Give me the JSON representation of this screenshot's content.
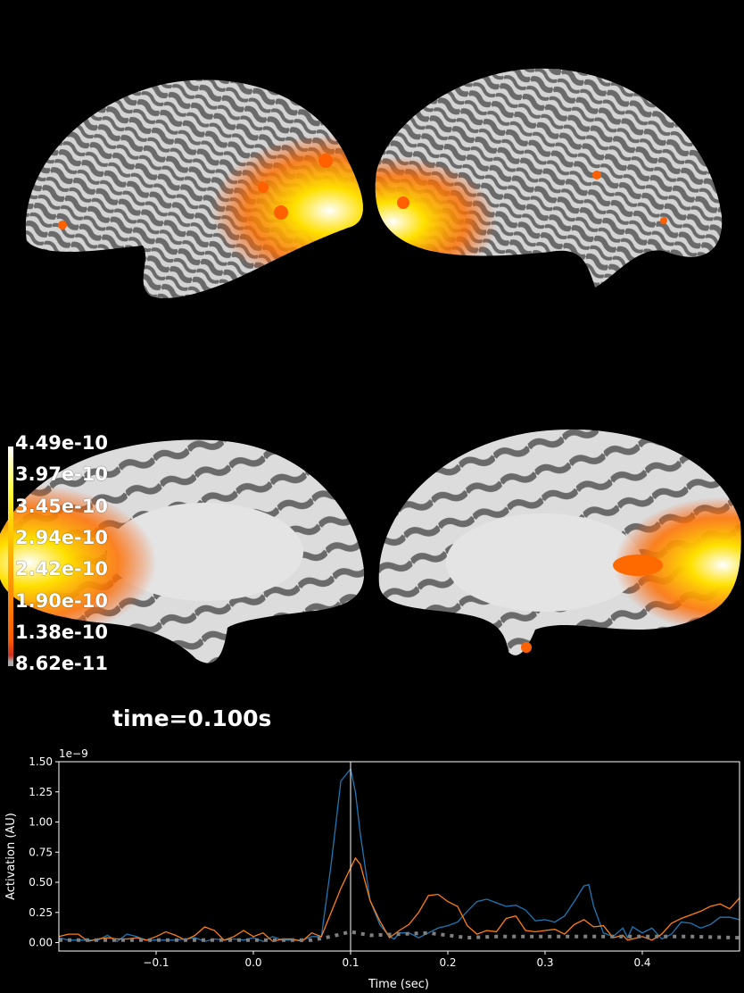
{
  "colorbar": {
    "labels": [
      "4.49e-10",
      "3.97e-10",
      "3.45e-10",
      "2.94e-10",
      "2.42e-10",
      "1.90e-10",
      "1.38e-10",
      "8.62e-11"
    ],
    "colors": [
      "#ffffff",
      "#ffff40",
      "#ffd000",
      "#ff9a00",
      "#ff5a00",
      "#d03020",
      "#aaaaaa"
    ]
  },
  "time_label": "time=0.100s",
  "colors": {
    "background": "#000000",
    "cortex_light": "#d9d9d9",
    "cortex_dark": "#6a6a6a",
    "activation": "#ff6a00"
  },
  "chart_data": {
    "type": "line",
    "xlabel": "Time (sec)",
    "ylabel": "Activation (AU)",
    "offset_text": "1e−9",
    "xlim": [
      -0.2,
      0.5
    ],
    "ylim": [
      -0.07,
      1.5
    ],
    "xticks": [
      -0.1,
      0.0,
      0.1,
      0.2,
      0.3,
      0.4
    ],
    "xtick_labels": [
      "−0.1",
      "0.0",
      "0.1",
      "0.2",
      "0.3",
      "0.4"
    ],
    "yticks": [
      0,
      0.25,
      0.5,
      0.75,
      1.0,
      1.25,
      1.5
    ],
    "ytick_labels": [
      "0.00",
      "0.25",
      "0.50",
      "0.75",
      "1.00",
      "1.25",
      "1.50"
    ],
    "grid": false,
    "vline": 0.1,
    "series": [
      {
        "color": "#1f77b4",
        "style": "solid",
        "points": [
          [
            -0.2,
            0.04
          ],
          [
            -0.19,
            0.02
          ],
          [
            -0.18,
            0.02
          ],
          [
            -0.17,
            0.02
          ],
          [
            -0.16,
            0.02
          ],
          [
            -0.15,
            0.06
          ],
          [
            -0.14,
            0.01
          ],
          [
            -0.13,
            0.07
          ],
          [
            -0.12,
            0.05
          ],
          [
            -0.11,
            0.02
          ],
          [
            -0.1,
            0.02
          ],
          [
            -0.09,
            0.02
          ],
          [
            -0.08,
            0.02
          ],
          [
            -0.07,
            0.03
          ],
          [
            -0.06,
            0.04
          ],
          [
            -0.05,
            0.01
          ],
          [
            -0.04,
            0.03
          ],
          [
            -0.03,
            0.02
          ],
          [
            -0.02,
            0.03
          ],
          [
            -0.01,
            0.02
          ],
          [
            0.0,
            0.04
          ],
          [
            0.01,
            0.01
          ],
          [
            0.02,
            0.05
          ],
          [
            0.03,
            0.02
          ],
          [
            0.04,
            0.02
          ],
          [
            0.05,
            0.02
          ],
          [
            0.06,
            0.05
          ],
          [
            0.07,
            0.05
          ],
          [
            0.08,
            0.65
          ],
          [
            0.09,
            1.34
          ],
          [
            0.1,
            1.44
          ],
          [
            0.105,
            1.25
          ],
          [
            0.11,
            0.9
          ],
          [
            0.12,
            0.35
          ],
          [
            0.13,
            0.15
          ],
          [
            0.14,
            0.05
          ],
          [
            0.145,
            0.03
          ],
          [
            0.15,
            0.08
          ],
          [
            0.16,
            0.08
          ],
          [
            0.17,
            0.04
          ],
          [
            0.18,
            0.08
          ],
          [
            0.19,
            0.12
          ],
          [
            0.2,
            0.14
          ],
          [
            0.21,
            0.17
          ],
          [
            0.22,
            0.26
          ],
          [
            0.23,
            0.34
          ],
          [
            0.24,
            0.36
          ],
          [
            0.25,
            0.33
          ],
          [
            0.26,
            0.3
          ],
          [
            0.27,
            0.31
          ],
          [
            0.28,
            0.27
          ],
          [
            0.29,
            0.18
          ],
          [
            0.3,
            0.19
          ],
          [
            0.31,
            0.17
          ],
          [
            0.32,
            0.22
          ],
          [
            0.33,
            0.34
          ],
          [
            0.34,
            0.47
          ],
          [
            0.345,
            0.48
          ],
          [
            0.35,
            0.3
          ],
          [
            0.36,
            0.08
          ],
          [
            0.37,
            0.05
          ],
          [
            0.38,
            0.12
          ],
          [
            0.385,
            0.04
          ],
          [
            0.39,
            0.13
          ],
          [
            0.4,
            0.08
          ],
          [
            0.41,
            0.12
          ],
          [
            0.42,
            0.03
          ],
          [
            0.43,
            0.07
          ],
          [
            0.44,
            0.17
          ],
          [
            0.45,
            0.16
          ],
          [
            0.46,
            0.12
          ],
          [
            0.47,
            0.15
          ],
          [
            0.48,
            0.21
          ],
          [
            0.49,
            0.21
          ],
          [
            0.5,
            0.19
          ]
        ]
      },
      {
        "color": "#ff7f0e",
        "style": "solid",
        "points": [
          [
            -0.2,
            0.05
          ],
          [
            -0.19,
            0.07
          ],
          [
            -0.18,
            0.07
          ],
          [
            -0.17,
            0.01
          ],
          [
            -0.16,
            0.03
          ],
          [
            -0.15,
            0.04
          ],
          [
            -0.14,
            0.03
          ],
          [
            -0.13,
            0.03
          ],
          [
            -0.12,
            0.04
          ],
          [
            -0.11,
            0.02
          ],
          [
            -0.1,
            0.05
          ],
          [
            -0.09,
            0.09
          ],
          [
            -0.08,
            0.06
          ],
          [
            -0.07,
            0.02
          ],
          [
            -0.06,
            0.06
          ],
          [
            -0.05,
            0.13
          ],
          [
            -0.04,
            0.1
          ],
          [
            -0.03,
            0.02
          ],
          [
            -0.02,
            0.05
          ],
          [
            -0.01,
            0.1
          ],
          [
            0.0,
            0.05
          ],
          [
            0.01,
            0.08
          ],
          [
            0.02,
            0.01
          ],
          [
            0.03,
            0.03
          ],
          [
            0.04,
            0.03
          ],
          [
            0.05,
            0.01
          ],
          [
            0.06,
            0.08
          ],
          [
            0.07,
            0.05
          ],
          [
            0.08,
            0.25
          ],
          [
            0.09,
            0.45
          ],
          [
            0.1,
            0.62
          ],
          [
            0.105,
            0.7
          ],
          [
            0.11,
            0.65
          ],
          [
            0.12,
            0.35
          ],
          [
            0.13,
            0.18
          ],
          [
            0.14,
            0.04
          ],
          [
            0.15,
            0.1
          ],
          [
            0.16,
            0.15
          ],
          [
            0.17,
            0.25
          ],
          [
            0.18,
            0.39
          ],
          [
            0.19,
            0.4
          ],
          [
            0.2,
            0.34
          ],
          [
            0.21,
            0.3
          ],
          [
            0.22,
            0.14
          ],
          [
            0.23,
            0.07
          ],
          [
            0.24,
            0.1
          ],
          [
            0.25,
            0.09
          ],
          [
            0.26,
            0.2
          ],
          [
            0.27,
            0.22
          ],
          [
            0.28,
            0.1
          ],
          [
            0.29,
            0.09
          ],
          [
            0.3,
            0.1
          ],
          [
            0.31,
            0.11
          ],
          [
            0.32,
            0.07
          ],
          [
            0.33,
            0.15
          ],
          [
            0.34,
            0.19
          ],
          [
            0.35,
            0.13
          ],
          [
            0.36,
            0.14
          ],
          [
            0.37,
            0.04
          ],
          [
            0.38,
            0.06
          ],
          [
            0.385,
            0.02
          ],
          [
            0.39,
            0.03
          ],
          [
            0.4,
            0.05
          ],
          [
            0.41,
            0.02
          ],
          [
            0.42,
            0.07
          ],
          [
            0.43,
            0.16
          ],
          [
            0.44,
            0.2
          ],
          [
            0.45,
            0.23
          ],
          [
            0.46,
            0.26
          ],
          [
            0.47,
            0.3
          ],
          [
            0.48,
            0.32
          ],
          [
            0.49,
            0.28
          ],
          [
            0.5,
            0.37
          ]
        ]
      },
      {
        "color": "#808080",
        "style": "dotted",
        "points": [
          [
            -0.2,
            0.02
          ],
          [
            -0.1,
            0.02
          ],
          [
            0.0,
            0.02
          ],
          [
            0.06,
            0.02
          ],
          [
            0.08,
            0.05
          ],
          [
            0.1,
            0.09
          ],
          [
            0.12,
            0.06
          ],
          [
            0.15,
            0.07
          ],
          [
            0.18,
            0.08
          ],
          [
            0.2,
            0.06
          ],
          [
            0.22,
            0.04
          ],
          [
            0.25,
            0.05
          ],
          [
            0.3,
            0.05
          ],
          [
            0.35,
            0.05
          ],
          [
            0.4,
            0.05
          ],
          [
            0.45,
            0.05
          ],
          [
            0.5,
            0.04
          ]
        ]
      }
    ]
  }
}
